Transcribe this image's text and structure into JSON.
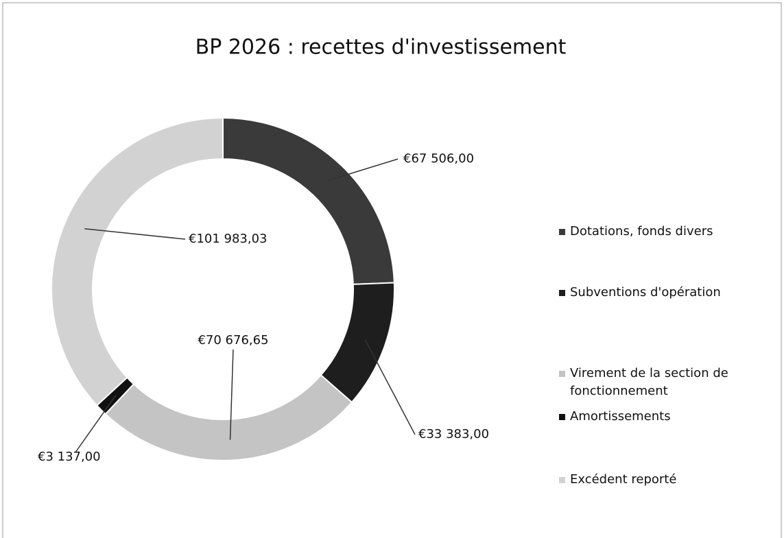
{
  "chart_data": {
    "type": "donut",
    "title": "BP 2026 : recettes d'investissement",
    "categories": [
      "Dotations, fonds divers",
      "Subventions d'opération",
      "Virement de la section de fonctionnement",
      "Amortissements",
      "Excédent reporté"
    ],
    "values": [
      67506,
      33383,
      70676.65,
      3137,
      101983.03
    ],
    "value_labels": [
      "€67 506,00",
      "€33 383,00",
      "€70 676,65",
      "€3 137,00",
      "€101 983,03"
    ],
    "colors": [
      "#3a3a3a",
      "#1e1e1e",
      "#c4c4c4",
      "#111111",
      "#d2d2d2"
    ],
    "legend": "right"
  }
}
